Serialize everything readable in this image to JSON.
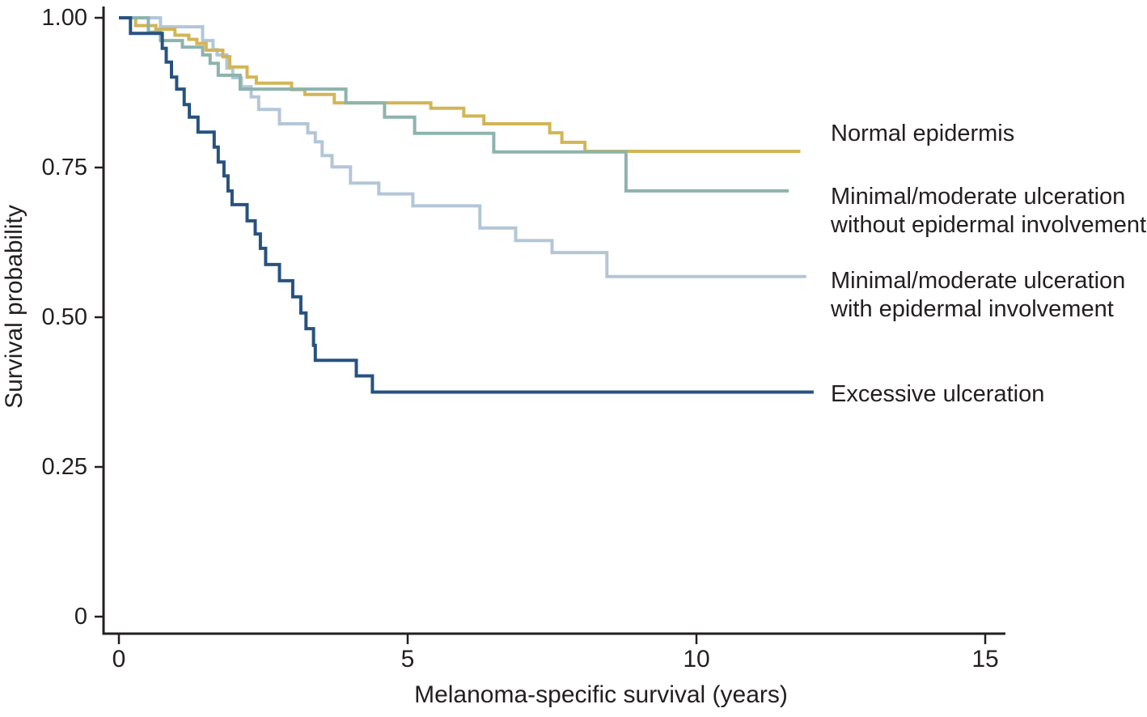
{
  "chart_data": {
    "type": "line",
    "subtype": "kaplan-meier-step",
    "title": "",
    "xlabel": "Melanoma-specific survival (years)",
    "ylabel": "Survival probability",
    "xlim": [
      0,
      15
    ],
    "ylim": [
      0,
      1
    ],
    "grid": false,
    "legend_position": "right-of-plot",
    "axis_color": "#231f20",
    "x_ticks": [
      {
        "value": 0,
        "label": "0"
      },
      {
        "value": 5,
        "label": "5"
      },
      {
        "value": 10,
        "label": "10"
      },
      {
        "value": 15,
        "label": "15"
      }
    ],
    "y_ticks": [
      {
        "value": 0,
        "label": "0"
      },
      {
        "value": 0.25,
        "label": "0.25"
      },
      {
        "value": 0.5,
        "label": "0.50"
      },
      {
        "value": 0.75,
        "label": "0.75"
      },
      {
        "value": 1,
        "label": "1.00"
      }
    ],
    "series": [
      {
        "name": "Minimal/moderate ulceration\nwith epidermal involvement",
        "color": "#b3c6d8",
        "t_end": 11.9,
        "steps": [
          [
            0,
            1.0
          ],
          [
            0.72,
            0.985
          ],
          [
            1.45,
            0.962
          ],
          [
            1.63,
            0.947
          ],
          [
            1.7,
            0.938
          ],
          [
            1.87,
            0.916
          ],
          [
            1.97,
            0.9
          ],
          [
            2.12,
            0.885
          ],
          [
            2.29,
            0.868
          ],
          [
            2.42,
            0.847
          ],
          [
            2.78,
            0.823
          ],
          [
            3.27,
            0.808
          ],
          [
            3.4,
            0.793
          ],
          [
            3.52,
            0.77
          ],
          [
            3.69,
            0.751
          ],
          [
            4.01,
            0.724
          ],
          [
            4.5,
            0.706
          ],
          [
            5.09,
            0.686
          ],
          [
            6.25,
            0.649
          ],
          [
            6.87,
            0.628
          ],
          [
            7.5,
            0.608
          ],
          [
            8.45,
            0.568
          ]
        ]
      },
      {
        "name": "Normal epidermis",
        "color": "#d2b556",
        "t_end": 11.8,
        "steps": [
          [
            0,
            1.0
          ],
          [
            0.29,
            0.987
          ],
          [
            0.64,
            0.981
          ],
          [
            0.97,
            0.971
          ],
          [
            1.21,
            0.964
          ],
          [
            1.35,
            0.957
          ],
          [
            1.51,
            0.946
          ],
          [
            1.8,
            0.935
          ],
          [
            1.92,
            0.918
          ],
          [
            2.22,
            0.901
          ],
          [
            2.38,
            0.891
          ],
          [
            2.99,
            0.88
          ],
          [
            3.22,
            0.872
          ],
          [
            3.73,
            0.858
          ],
          [
            5.4,
            0.849
          ],
          [
            5.97,
            0.836
          ],
          [
            6.32,
            0.823
          ],
          [
            7.46,
            0.808
          ],
          [
            7.67,
            0.792
          ],
          [
            8.07,
            0.777
          ]
        ]
      },
      {
        "name": "Minimal/moderate ulceration\nwithout epidermal involvement",
        "color": "#8db3ad",
        "t_end": 11.6,
        "steps": [
          [
            0,
            1.0
          ],
          [
            0.51,
            0.976
          ],
          [
            0.72,
            0.962
          ],
          [
            1.1,
            0.951
          ],
          [
            1.45,
            0.938
          ],
          [
            1.58,
            0.924
          ],
          [
            1.72,
            0.904
          ],
          [
            2.1,
            0.881
          ],
          [
            3.93,
            0.858
          ],
          [
            4.6,
            0.834
          ],
          [
            5.12,
            0.807
          ],
          [
            6.49,
            0.776
          ],
          [
            8.78,
            0.711
          ]
        ]
      },
      {
        "name": "Excessive ulceration",
        "color": "#27527f",
        "t_end": 12.03,
        "steps": [
          [
            0,
            1.0
          ],
          [
            0.2,
            0.974
          ],
          [
            0.75,
            0.949
          ],
          [
            0.82,
            0.926
          ],
          [
            0.91,
            0.901
          ],
          [
            1.0,
            0.881
          ],
          [
            1.13,
            0.855
          ],
          [
            1.22,
            0.834
          ],
          [
            1.37,
            0.809
          ],
          [
            1.65,
            0.784
          ],
          [
            1.72,
            0.759
          ],
          [
            1.82,
            0.736
          ],
          [
            1.89,
            0.711
          ],
          [
            1.96,
            0.688
          ],
          [
            2.22,
            0.661
          ],
          [
            2.36,
            0.639
          ],
          [
            2.45,
            0.615
          ],
          [
            2.54,
            0.588
          ],
          [
            2.78,
            0.561
          ],
          [
            3.01,
            0.534
          ],
          [
            3.15,
            0.507
          ],
          [
            3.24,
            0.481
          ],
          [
            3.37,
            0.453
          ],
          [
            3.4,
            0.428
          ],
          [
            4.11,
            0.402
          ],
          [
            4.39,
            0.375
          ]
        ]
      }
    ],
    "legend_order": [
      1,
      2,
      0,
      3
    ]
  }
}
